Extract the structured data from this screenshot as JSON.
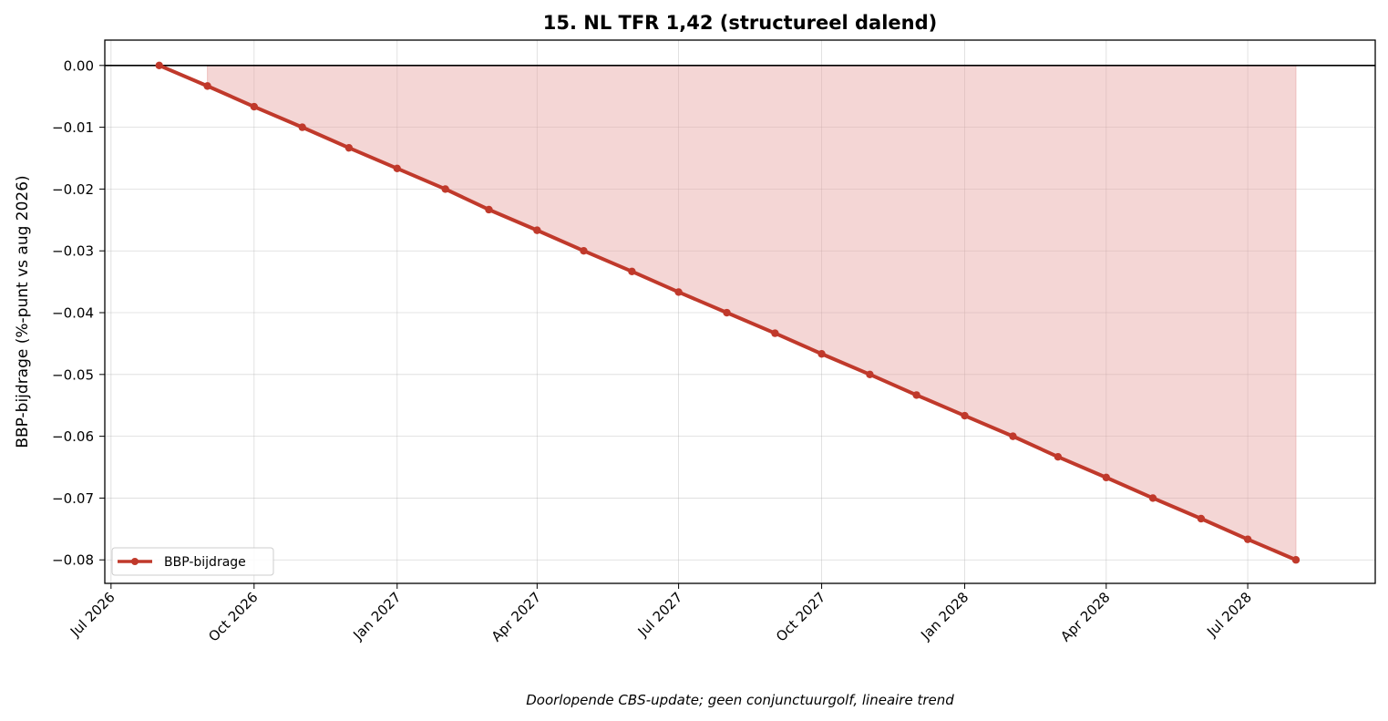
{
  "chart_data": {
    "type": "line",
    "title": "15. NL TFR 1,42 (structureel dalend)",
    "xlabel": "",
    "ylabel": "BBP-bijdrage (%-punt vs aug 2026)",
    "caption": "Doorlopende CBS-update; geen conjunctuurgolf, lineaire trend",
    "x_ticks": [
      "Jul 2026",
      "Oct 2026",
      "Jan 2027",
      "Apr 2027",
      "Jul 2027",
      "Oct 2027",
      "Jan 2028",
      "Apr 2028",
      "Jul 2028"
    ],
    "x_tick_dates": [
      "2026-07-01",
      "2026-10-01",
      "2027-01-01",
      "2027-04-01",
      "2027-07-01",
      "2027-10-01",
      "2028-01-01",
      "2028-04-01",
      "2028-07-01"
    ],
    "y_ticks": [
      "0.00",
      "−0.01",
      "−0.02",
      "−0.03",
      "−0.04",
      "−0.05",
      "−0.06",
      "−0.07",
      "−0.08"
    ],
    "y_tick_values": [
      0.0,
      -0.01,
      -0.02,
      -0.03,
      -0.04,
      -0.05,
      -0.06,
      -0.07,
      -0.08
    ],
    "ylim": [
      -0.0838,
      0.0041
    ],
    "xlim": [
      "2026-06-27",
      "2028-09-21"
    ],
    "grid": true,
    "zero_line": true,
    "legend_position": "lower-left",
    "fill_under": true,
    "series": [
      {
        "name": "BBP-bijdrage",
        "color": "#c0392b",
        "fill_color": "#e6a5a2",
        "x": [
          "2026-08-01",
          "2026-09-01",
          "2026-10-01",
          "2026-11-01",
          "2026-12-01",
          "2027-01-01",
          "2027-02-01",
          "2027-03-01",
          "2027-04-01",
          "2027-05-01",
          "2027-06-01",
          "2027-07-01",
          "2027-08-01",
          "2027-09-01",
          "2027-10-01",
          "2027-11-01",
          "2027-12-01",
          "2028-01-01",
          "2028-02-01",
          "2028-03-01",
          "2028-04-01",
          "2028-05-01",
          "2028-06-01",
          "2028-07-01",
          "2028-08-01"
        ],
        "y": [
          0.0,
          -0.00333,
          -0.00667,
          -0.01,
          -0.01333,
          -0.01667,
          -0.02,
          -0.02333,
          -0.02667,
          -0.03,
          -0.03333,
          -0.03667,
          -0.04,
          -0.04333,
          -0.04667,
          -0.05,
          -0.05333,
          -0.05667,
          -0.06,
          -0.06333,
          -0.06667,
          -0.07,
          -0.07333,
          -0.07667,
          -0.08
        ]
      }
    ]
  }
}
